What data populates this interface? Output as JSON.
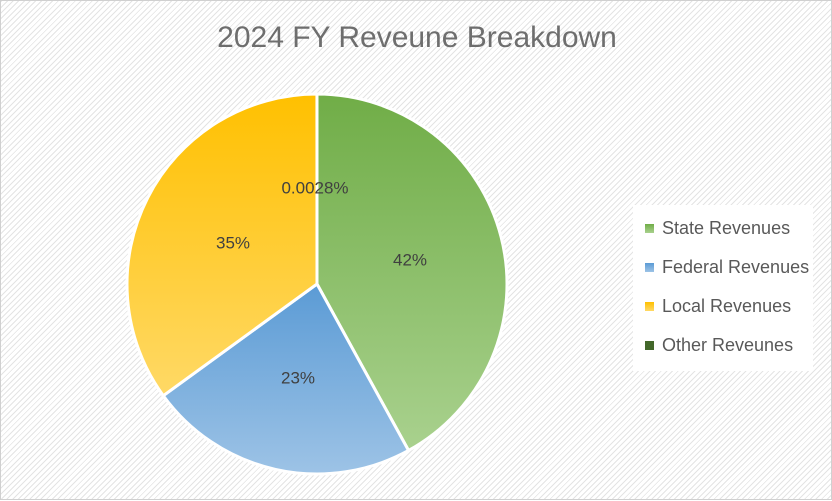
{
  "chart_data": {
    "type": "pie",
    "title": "2024 FY Reveune Breakdown",
    "start_angle_deg": 0,
    "direction": "clockwise",
    "legend_position": "right",
    "slices": [
      {
        "name": "State Revenues",
        "value": 42,
        "label": "42%",
        "color_dark": "#70ad47",
        "color_light": "#a9d18e",
        "legend_color": "#70ad47"
      },
      {
        "name": "Federal Revenues",
        "value": 23,
        "label": "23%",
        "color_dark": "#5b9bd5",
        "color_light": "#9dc3e6",
        "legend_color": "#5b9bd5"
      },
      {
        "name": "Local Revenues",
        "value": 35,
        "label": "35%",
        "color_dark": "#ffc000",
        "color_light": "#ffd966",
        "legend_color": "#ffc000"
      },
      {
        "name": "Other Reveunes",
        "value": 0.0028,
        "label": "0.0028%",
        "color_dark": "#43682b",
        "color_light": "#43682b",
        "legend_color": "#43682b"
      }
    ]
  }
}
